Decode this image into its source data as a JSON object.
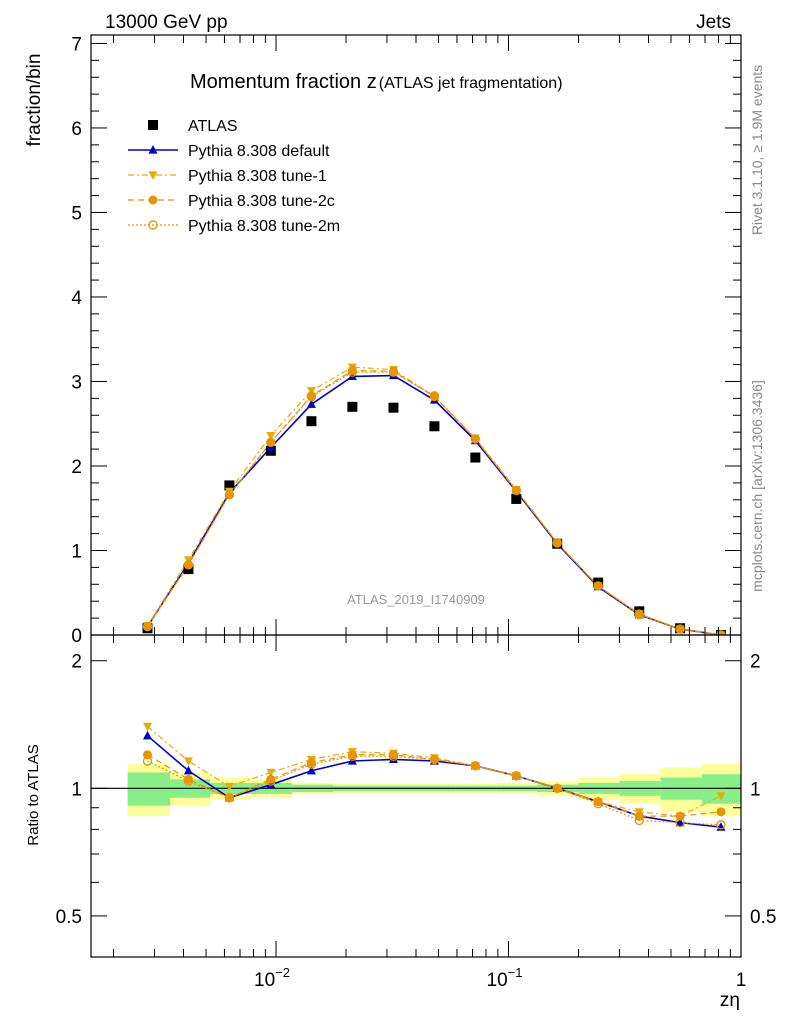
{
  "header": {
    "left": "13000 GeV pp",
    "right": "Jets"
  },
  "side": {
    "rivet": "Rivet 3.1.10, ≥ 1.9M events",
    "mcplots": "mcplots.cern.ch [arXiv:1306.3436]"
  },
  "chart_data": {
    "type": "scatter",
    "title_main": "Momentum fraction z",
    "title_sub": "(ATLAS jet fragmentation)",
    "analysis_label": "ATLAS_2019_I1740909",
    "xlabel": "zη",
    "ylabel_main": "fraction/bin",
    "ylabel_ratio": "Ratio to ATLAS",
    "x_scale": "log",
    "xlim": [
      0.0016,
      1.0
    ],
    "ylim_main": [
      0,
      7.1
    ],
    "ylim_ratio": [
      0.4,
      2.3
    ],
    "x_ticks": [
      {
        "value": 0.01,
        "base": "10",
        "exp": "−2"
      },
      {
        "value": 0.1,
        "base": "10",
        "exp": "−1"
      },
      {
        "value": 1,
        "base": "1",
        "exp": ""
      }
    ],
    "y_ticks_main": [
      "0",
      "1",
      "2",
      "3",
      "4",
      "5",
      "6",
      "7"
    ],
    "y_ticks_ratio": [
      "0.5",
      "1",
      "2"
    ],
    "legend_position": "top-left",
    "x": [
      0.0028,
      0.0042,
      0.0063,
      0.0095,
      0.0142,
      0.0213,
      0.032,
      0.048,
      0.072,
      0.108,
      0.162,
      0.243,
      0.365,
      0.547,
      0.82
    ],
    "data_ratio_bands": {
      "edges": [
        0.0023,
        0.0035,
        0.0052,
        0.0078,
        0.0117,
        0.0176,
        0.0264,
        0.0396,
        0.059,
        0.089,
        0.133,
        0.2,
        0.3,
        0.45,
        0.68,
        1.0
      ],
      "inner_half": [
        0.09,
        0.05,
        0.03,
        0.03,
        0.02,
        0.015,
        0.015,
        0.015,
        0.015,
        0.015,
        0.02,
        0.03,
        0.04,
        0.06,
        0.08
      ],
      "outer_half": [
        0.14,
        0.09,
        0.06,
        0.05,
        0.03,
        0.025,
        0.025,
        0.025,
        0.025,
        0.03,
        0.04,
        0.06,
        0.08,
        0.12,
        0.14
      ]
    },
    "series": [
      {
        "name": "ATLAS",
        "color": "#000000",
        "marker": "square",
        "line": "none",
        "values": [
          0.08,
          0.78,
          1.77,
          2.18,
          2.53,
          2.7,
          2.69,
          2.47,
          2.1,
          1.61,
          1.08,
          0.62,
          0.28,
          0.08,
          0.0
        ]
      },
      {
        "name": "Pythia 8.308 default",
        "color": "#0000cc",
        "marker": "triangle-up",
        "line": "solid",
        "values": [
          0.1,
          0.85,
          1.68,
          2.22,
          2.73,
          3.06,
          3.07,
          2.78,
          2.3,
          1.7,
          1.08,
          0.57,
          0.24,
          0.07,
          0.0
        ],
        "ratio": [
          1.33,
          1.1,
          0.95,
          1.02,
          1.1,
          1.16,
          1.17,
          1.16,
          1.13,
          1.07,
          1.0,
          0.93,
          0.86,
          0.83,
          0.81
        ]
      },
      {
        "name": "Pythia 8.308 tune-1",
        "color": "#e6ac00",
        "marker": "triangle-down",
        "line": "dashdot",
        "values": [
          0.11,
          0.89,
          1.7,
          2.36,
          2.89,
          3.17,
          3.14,
          2.82,
          2.33,
          1.72,
          1.09,
          0.58,
          0.25,
          0.07,
          0.0
        ],
        "ratio": [
          1.4,
          1.16,
          1.01,
          1.09,
          1.17,
          1.22,
          1.21,
          1.18,
          1.13,
          1.07,
          1.0,
          0.93,
          0.88,
          0.86,
          0.96
        ]
      },
      {
        "name": "Pythia 8.308 tune-2c",
        "color": "#e69500",
        "marker": "circle-filled",
        "line": "dashed",
        "values": [
          0.1,
          0.83,
          1.66,
          2.28,
          2.83,
          3.13,
          3.12,
          2.82,
          2.32,
          1.71,
          1.09,
          0.58,
          0.25,
          0.07,
          0.0
        ],
        "ratio": [
          1.2,
          1.05,
          0.95,
          1.05,
          1.15,
          1.2,
          1.2,
          1.17,
          1.13,
          1.07,
          1.0,
          0.93,
          0.86,
          0.86,
          0.88
        ]
      },
      {
        "name": "Pythia 8.308 tune-2m",
        "color": "#e69500",
        "marker": "circle-open",
        "line": "dotted",
        "values": [
          0.1,
          0.83,
          1.66,
          2.28,
          2.82,
          3.11,
          3.11,
          2.83,
          2.32,
          1.71,
          1.09,
          0.58,
          0.24,
          0.07,
          0.0
        ],
        "ratio": [
          1.16,
          1.04,
          0.95,
          1.04,
          1.14,
          1.19,
          1.19,
          1.17,
          1.13,
          1.07,
          1.0,
          0.92,
          0.84,
          0.83,
          0.82
        ]
      }
    ]
  }
}
